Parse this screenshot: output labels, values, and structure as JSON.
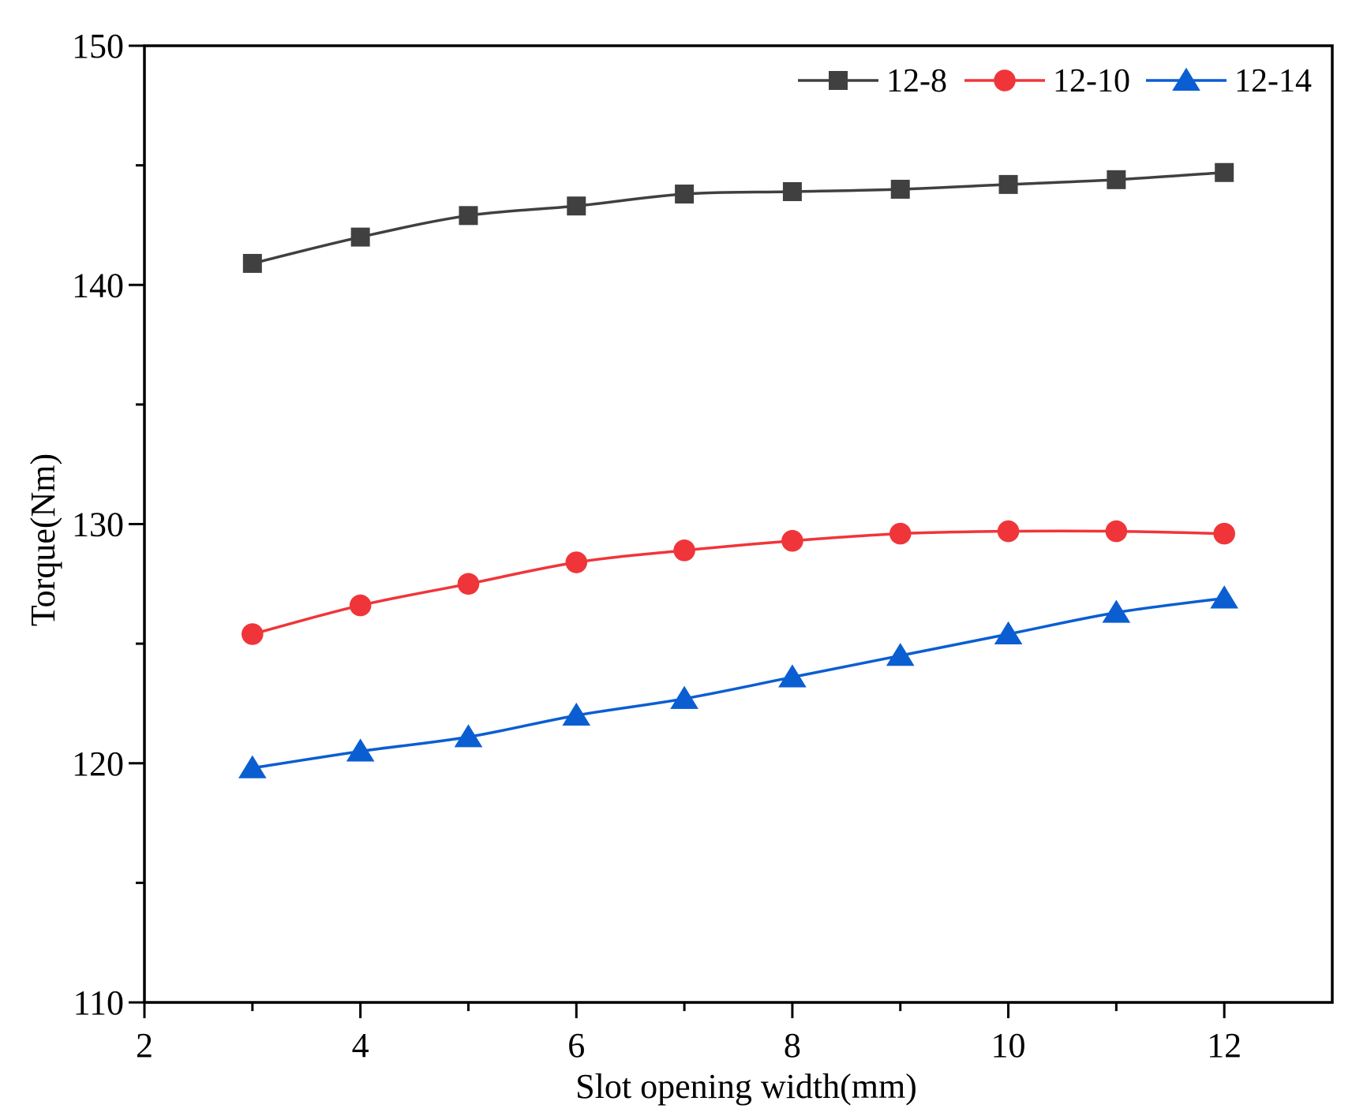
{
  "chart_data": {
    "type": "line",
    "title": "",
    "xlabel": "Slot opening width(mm)",
    "ylabel": "Torque(Nm)",
    "xlim": [
      2,
      13
    ],
    "ylim": [
      110,
      150
    ],
    "x_ticks": [
      2,
      4,
      6,
      8,
      10,
      12
    ],
    "y_ticks": [
      110,
      120,
      130,
      140,
      150
    ],
    "x_minor_ticks": [
      3,
      5,
      7,
      9,
      11
    ],
    "y_minor_ticks": [
      115,
      125,
      135,
      145
    ],
    "legend_position": "top-right",
    "grid": false,
    "x": [
      3,
      4,
      5,
      6,
      7,
      8,
      9,
      10,
      11,
      12
    ],
    "series": [
      {
        "name": "12-8",
        "color": "#404040",
        "marker": "square",
        "values": [
          140.9,
          142.0,
          142.9,
          143.3,
          143.8,
          143.9,
          144.0,
          144.2,
          144.4,
          144.7
        ]
      },
      {
        "name": "12-10",
        "color": "#f0353a",
        "marker": "circle",
        "values": [
          125.4,
          126.6,
          127.5,
          128.4,
          128.9,
          129.3,
          129.6,
          129.7,
          129.7,
          129.6
        ]
      },
      {
        "name": "12-14",
        "color": "#0a5ed2",
        "marker": "triangle",
        "values": [
          119.8,
          120.5,
          121.1,
          122.0,
          122.7,
          123.6,
          124.5,
          125.4,
          126.3,
          126.9
        ]
      }
    ]
  }
}
